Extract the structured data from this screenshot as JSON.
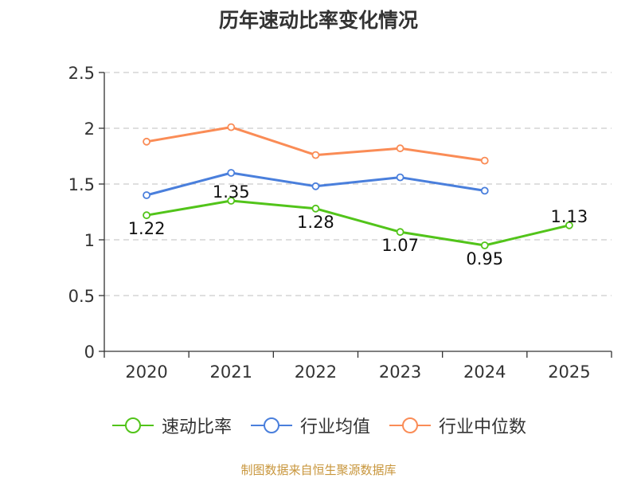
{
  "chart_data": {
    "type": "line",
    "title": "历年速动比率变化情况",
    "categories": [
      "2020",
      "2021",
      "2022",
      "2023",
      "2024",
      "2025"
    ],
    "yticks": [
      "0",
      "0.5",
      "1",
      "1.5",
      "2",
      "2.5"
    ],
    "ylim": [
      0,
      2.5
    ],
    "grid": true,
    "legend_position": "bottom",
    "series": [
      {
        "name": "速动比率",
        "color": "#52c41a",
        "values": [
          1.22,
          1.35,
          1.28,
          1.07,
          0.95,
          1.13
        ],
        "labels": [
          "1.22",
          "1.35",
          "1.28",
          "1.07",
          "0.95",
          "1.13"
        ]
      },
      {
        "name": "行业均值",
        "color": "#4a7fdc",
        "values": [
          1.4,
          1.6,
          1.48,
          1.56,
          1.44,
          null
        ]
      },
      {
        "name": "行业中位数",
        "color": "#fa8c56",
        "values": [
          1.88,
          2.01,
          1.76,
          1.82,
          1.71,
          null
        ]
      }
    ],
    "source": "制图数据来自恒生聚源数据库"
  }
}
